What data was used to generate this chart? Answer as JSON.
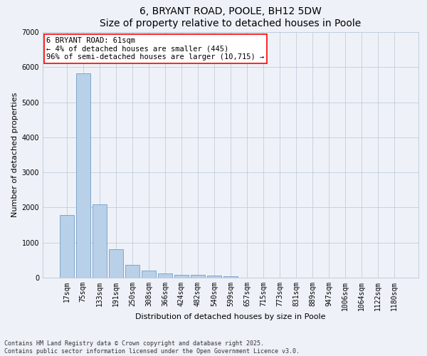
{
  "title": "6, BRYANT ROAD, POOLE, BH12 5DW",
  "subtitle": "Size of property relative to detached houses in Poole",
  "xlabel": "Distribution of detached houses by size in Poole",
  "ylabel": "Number of detached properties",
  "categories": [
    "17sqm",
    "75sqm",
    "133sqm",
    "191sqm",
    "250sqm",
    "308sqm",
    "366sqm",
    "424sqm",
    "482sqm",
    "540sqm",
    "599sqm",
    "657sqm",
    "715sqm",
    "773sqm",
    "831sqm",
    "889sqm",
    "947sqm",
    "1006sqm",
    "1064sqm",
    "1122sqm",
    "1180sqm"
  ],
  "values": [
    1780,
    5820,
    2100,
    820,
    360,
    210,
    120,
    90,
    75,
    60,
    50,
    0,
    0,
    0,
    0,
    0,
    0,
    0,
    0,
    0,
    0
  ],
  "bar_color": "#b8d0e8",
  "bar_edge_color": "#6090c0",
  "background_color": "#eef2f8",
  "grid_color": "#c0ccdc",
  "annotation_text": "6 BRYANT ROAD: 61sqm\n← 4% of detached houses are smaller (445)\n96% of semi-detached houses are larger (10,715) →",
  "annotation_box_color": "white",
  "annotation_box_edge": "red",
  "footnote1": "Contains HM Land Registry data © Crown copyright and database right 2025.",
  "footnote2": "Contains public sector information licensed under the Open Government Licence v3.0.",
  "ylim": [
    0,
    7000
  ],
  "yticks": [
    0,
    1000,
    2000,
    3000,
    4000,
    5000,
    6000,
    7000
  ],
  "title_fontsize": 10,
  "axis_label_fontsize": 8,
  "tick_fontsize": 7,
  "annotation_fontsize": 7.5,
  "footnote_fontsize": 6
}
